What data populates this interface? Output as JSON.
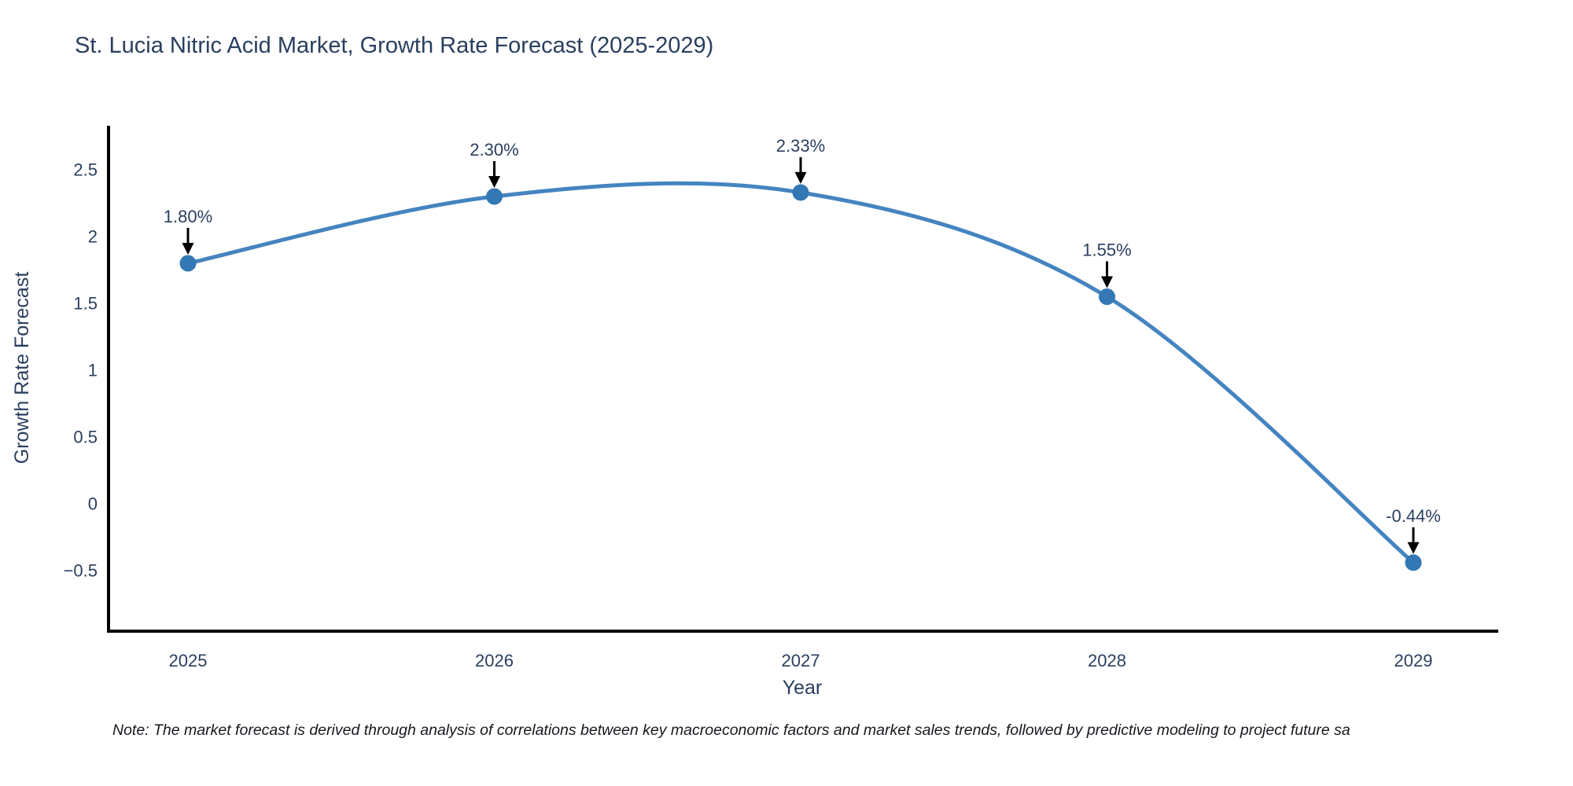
{
  "page": {
    "background": "#ffffff"
  },
  "chart_data": {
    "type": "line",
    "line_shape": "spline",
    "title": "St. Lucia Nitric Acid Market, Growth Rate Forecast (2025-2029)",
    "xlabel": "Year",
    "ylabel": "Growth Rate Forecast",
    "categories": [
      "2025",
      "2026",
      "2027",
      "2028",
      "2029"
    ],
    "series": [
      {
        "name": "Growth Rate Forecast",
        "values": [
          1.8,
          2.3,
          2.33,
          1.55,
          -0.44
        ]
      }
    ],
    "point_labels": [
      "1.80%",
      "2.30%",
      "2.33%",
      "1.55%",
      "-0.44%"
    ],
    "yticks": [
      {
        "v": 2.5,
        "label": "2.5"
      },
      {
        "v": 2,
        "label": "2"
      },
      {
        "v": 1.5,
        "label": "1.5"
      },
      {
        "v": 1,
        "label": "1"
      },
      {
        "v": 0.5,
        "label": "0.5"
      },
      {
        "v": 0,
        "label": "0"
      },
      {
        "v": -0.5,
        "label": "−0.5"
      }
    ],
    "ylim": [
      -0.95,
      2.83
    ],
    "grid": false,
    "legend": "none",
    "colors": {
      "line": "#4484c0",
      "marker": "#3377b4",
      "axis": "#000000",
      "text": "#2a3f5f",
      "annotation_arrow": "#000000"
    }
  },
  "footnote": {
    "text": "Note: The market forecast is derived through analysis of correlations between key macroeconomic factors and market sales trends, followed by predictive modeling to project future sa"
  }
}
